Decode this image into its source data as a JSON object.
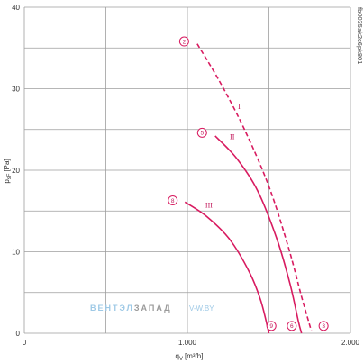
{
  "chart_data": {
    "type": "line",
    "xlabel": "q",
    "xlabel_sub": "V",
    "xlabel_unit": "[m³/h]",
    "ylabel": "p",
    "ylabel_sub": "sF",
    "ylabel_unit": "[Pa]",
    "xlim": [
      0,
      2000
    ],
    "ylim": [
      0,
      40
    ],
    "x_ticks": [
      0,
      1000,
      2000
    ],
    "x_tick_labels": [
      "0",
      "1.000",
      "2.000"
    ],
    "x_grid": [
      0,
      500,
      1000,
      1500,
      2000
    ],
    "y_ticks": [
      0,
      10,
      20,
      30,
      40
    ],
    "y_tick_labels": [
      "0",
      "10",
      "20",
      "30",
      "40"
    ],
    "y_grid": [
      0,
      5,
      10,
      15,
      20,
      25,
      30,
      35,
      40
    ],
    "grid": true,
    "curve_color": "#d81b60",
    "series": [
      {
        "name": "I",
        "dashed": true,
        "label_at": [
          1310,
          27.5
        ],
        "points": [
          [
            1060,
            35.5
          ],
          [
            1200,
            30.8
          ],
          [
            1350,
            25
          ],
          [
            1500,
            18
          ],
          [
            1620,
            10.5
          ],
          [
            1700,
            4.5
          ],
          [
            1760,
            0.3
          ]
        ],
        "start_marker": {
          "text": "2",
          "x": 980,
          "y": 35.8
        },
        "end_marker": {
          "text": "3",
          "x": 1835,
          "y": 0.9
        }
      },
      {
        "name": "II",
        "dashed": false,
        "label_at": [
          1260,
          23.8
        ],
        "points": [
          [
            1170,
            24.2
          ],
          [
            1300,
            21.5
          ],
          [
            1430,
            17.5
          ],
          [
            1550,
            11.5
          ],
          [
            1630,
            6
          ],
          [
            1680,
            1.5
          ],
          [
            1700,
            0
          ]
        ],
        "start_marker": {
          "text": "5",
          "x": 1090,
          "y": 24.6
        },
        "end_marker": {
          "text": "6",
          "x": 1640,
          "y": 0.9
        }
      },
      {
        "name": "III",
        "dashed": false,
        "label_at": [
          1110,
          15.4
        ],
        "points": [
          [
            985,
            16.1
          ],
          [
            1120,
            14.3
          ],
          [
            1260,
            11.5
          ],
          [
            1380,
            7.5
          ],
          [
            1450,
            4
          ],
          [
            1500,
            0
          ]
        ],
        "start_marker": {
          "text": "8",
          "x": 910,
          "y": 16.3
        },
        "end_marker": {
          "text": "9",
          "x": 1515,
          "y": 0.9
        }
      }
    ]
  },
  "watermark": {
    "part1": "ВЕНТЭЛ",
    "part2": "ЗАПАД",
    "part3": "V-W.BY"
  },
  "figure_code": "fb0035ak2c6pk801",
  "colors": {
    "grid": "#9e9e9e",
    "accent": "#d81b60",
    "watermark_blue": "#9ec9e6",
    "watermark_grey": "#9a9a9a"
  }
}
